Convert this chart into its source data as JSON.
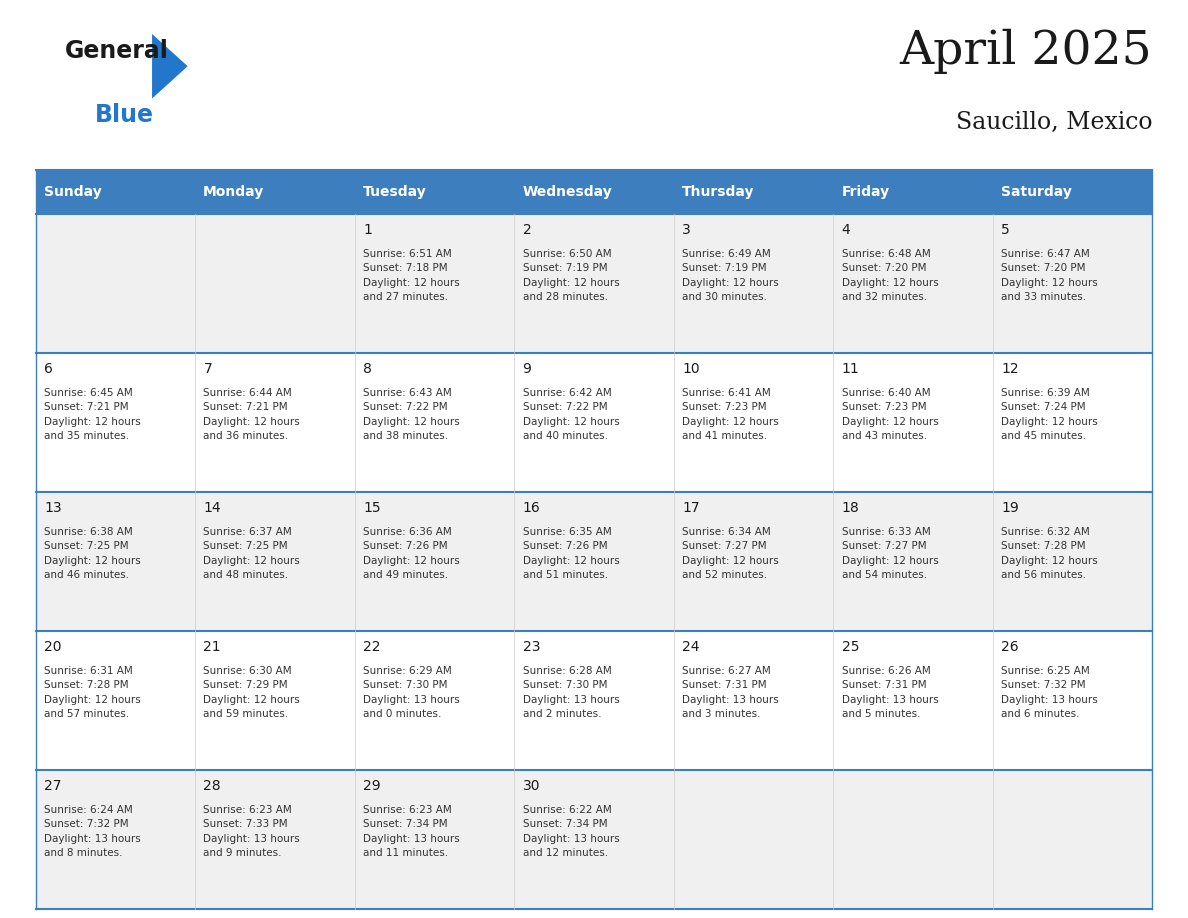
{
  "title": "April 2025",
  "subtitle": "Saucillo, Mexico",
  "header_color": "#3d7ebf",
  "header_text_color": "#ffffff",
  "days_of_week": [
    "Sunday",
    "Monday",
    "Tuesday",
    "Wednesday",
    "Thursday",
    "Friday",
    "Saturday"
  ],
  "weeks": [
    [
      {
        "day": null,
        "info": null
      },
      {
        "day": null,
        "info": null
      },
      {
        "day": 1,
        "info": "Sunrise: 6:51 AM\nSunset: 7:18 PM\nDaylight: 12 hours\nand 27 minutes."
      },
      {
        "day": 2,
        "info": "Sunrise: 6:50 AM\nSunset: 7:19 PM\nDaylight: 12 hours\nand 28 minutes."
      },
      {
        "day": 3,
        "info": "Sunrise: 6:49 AM\nSunset: 7:19 PM\nDaylight: 12 hours\nand 30 minutes."
      },
      {
        "day": 4,
        "info": "Sunrise: 6:48 AM\nSunset: 7:20 PM\nDaylight: 12 hours\nand 32 minutes."
      },
      {
        "day": 5,
        "info": "Sunrise: 6:47 AM\nSunset: 7:20 PM\nDaylight: 12 hours\nand 33 minutes."
      }
    ],
    [
      {
        "day": 6,
        "info": "Sunrise: 6:45 AM\nSunset: 7:21 PM\nDaylight: 12 hours\nand 35 minutes."
      },
      {
        "day": 7,
        "info": "Sunrise: 6:44 AM\nSunset: 7:21 PM\nDaylight: 12 hours\nand 36 minutes."
      },
      {
        "day": 8,
        "info": "Sunrise: 6:43 AM\nSunset: 7:22 PM\nDaylight: 12 hours\nand 38 minutes."
      },
      {
        "day": 9,
        "info": "Sunrise: 6:42 AM\nSunset: 7:22 PM\nDaylight: 12 hours\nand 40 minutes."
      },
      {
        "day": 10,
        "info": "Sunrise: 6:41 AM\nSunset: 7:23 PM\nDaylight: 12 hours\nand 41 minutes."
      },
      {
        "day": 11,
        "info": "Sunrise: 6:40 AM\nSunset: 7:23 PM\nDaylight: 12 hours\nand 43 minutes."
      },
      {
        "day": 12,
        "info": "Sunrise: 6:39 AM\nSunset: 7:24 PM\nDaylight: 12 hours\nand 45 minutes."
      }
    ],
    [
      {
        "day": 13,
        "info": "Sunrise: 6:38 AM\nSunset: 7:25 PM\nDaylight: 12 hours\nand 46 minutes."
      },
      {
        "day": 14,
        "info": "Sunrise: 6:37 AM\nSunset: 7:25 PM\nDaylight: 12 hours\nand 48 minutes."
      },
      {
        "day": 15,
        "info": "Sunrise: 6:36 AM\nSunset: 7:26 PM\nDaylight: 12 hours\nand 49 minutes."
      },
      {
        "day": 16,
        "info": "Sunrise: 6:35 AM\nSunset: 7:26 PM\nDaylight: 12 hours\nand 51 minutes."
      },
      {
        "day": 17,
        "info": "Sunrise: 6:34 AM\nSunset: 7:27 PM\nDaylight: 12 hours\nand 52 minutes."
      },
      {
        "day": 18,
        "info": "Sunrise: 6:33 AM\nSunset: 7:27 PM\nDaylight: 12 hours\nand 54 minutes."
      },
      {
        "day": 19,
        "info": "Sunrise: 6:32 AM\nSunset: 7:28 PM\nDaylight: 12 hours\nand 56 minutes."
      }
    ],
    [
      {
        "day": 20,
        "info": "Sunrise: 6:31 AM\nSunset: 7:28 PM\nDaylight: 12 hours\nand 57 minutes."
      },
      {
        "day": 21,
        "info": "Sunrise: 6:30 AM\nSunset: 7:29 PM\nDaylight: 12 hours\nand 59 minutes."
      },
      {
        "day": 22,
        "info": "Sunrise: 6:29 AM\nSunset: 7:30 PM\nDaylight: 13 hours\nand 0 minutes."
      },
      {
        "day": 23,
        "info": "Sunrise: 6:28 AM\nSunset: 7:30 PM\nDaylight: 13 hours\nand 2 minutes."
      },
      {
        "day": 24,
        "info": "Sunrise: 6:27 AM\nSunset: 7:31 PM\nDaylight: 13 hours\nand 3 minutes."
      },
      {
        "day": 25,
        "info": "Sunrise: 6:26 AM\nSunset: 7:31 PM\nDaylight: 13 hours\nand 5 minutes."
      },
      {
        "day": 26,
        "info": "Sunrise: 6:25 AM\nSunset: 7:32 PM\nDaylight: 13 hours\nand 6 minutes."
      }
    ],
    [
      {
        "day": 27,
        "info": "Sunrise: 6:24 AM\nSunset: 7:32 PM\nDaylight: 13 hours\nand 8 minutes."
      },
      {
        "day": 28,
        "info": "Sunrise: 6:23 AM\nSunset: 7:33 PM\nDaylight: 13 hours\nand 9 minutes."
      },
      {
        "day": 29,
        "info": "Sunrise: 6:23 AM\nSunset: 7:34 PM\nDaylight: 13 hours\nand 11 minutes."
      },
      {
        "day": 30,
        "info": "Sunrise: 6:22 AM\nSunset: 7:34 PM\nDaylight: 13 hours\nand 12 minutes."
      },
      {
        "day": null,
        "info": null
      },
      {
        "day": null,
        "info": null
      },
      {
        "day": null,
        "info": null
      }
    ]
  ],
  "bg_color": "#ffffff",
  "header_line_color": "#3d7ebf",
  "cell_bg_even": "#f0f0f0",
  "cell_bg_odd": "#ffffff",
  "text_color": "#333333",
  "day_num_color": "#1a1a1a",
  "logo_color_general": "#1a1a1a",
  "logo_color_blue": "#2277cc",
  "logo_triangle_color": "#2277cc"
}
